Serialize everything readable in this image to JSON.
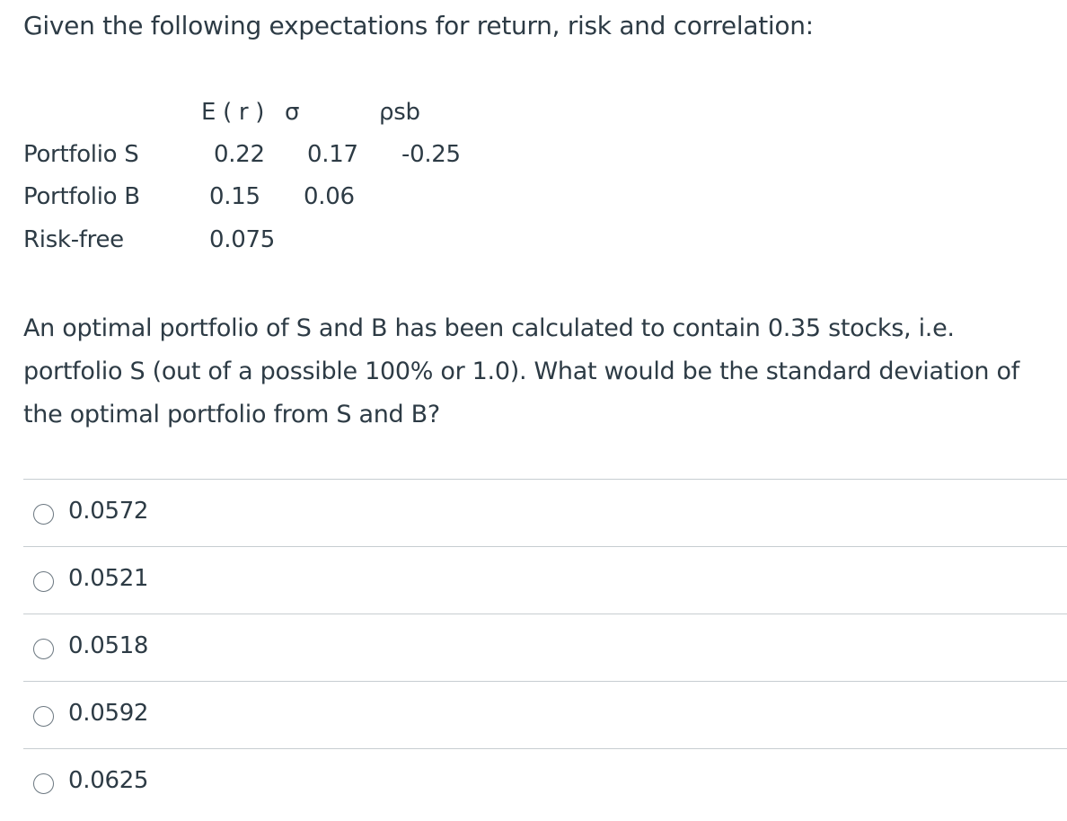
{
  "intro": "Given the following expectations for return, risk and correlation:",
  "table": {
    "headers": {
      "er": "E ( r )",
      "sigma": "σ",
      "rho": "ρsb"
    },
    "rows": [
      {
        "label": "Portfolio S",
        "er": "0.22",
        "sigma": "0.17",
        "rho": "-0.25"
      },
      {
        "label": "Portfolio B",
        "er": "0.15",
        "sigma": "0.06",
        "rho": ""
      },
      {
        "label": "Risk-free",
        "er": "0.075",
        "sigma": "",
        "rho": ""
      }
    ]
  },
  "question": "An optimal portfolio of S and B has been calculated to contain 0.35 stocks, i.e. portfolio S (out of a possible 100% or 1.0). What would be the standard deviation of the optimal portfolio from S and B?",
  "answers": [
    {
      "label": "0.0572"
    },
    {
      "label": "0.0521"
    },
    {
      "label": "0.0518"
    },
    {
      "label": "0.0592"
    },
    {
      "label": "0.0625"
    }
  ]
}
